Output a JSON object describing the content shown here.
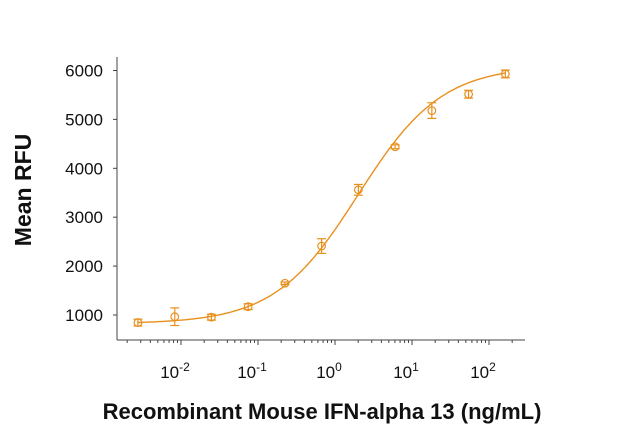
{
  "chart_data": {
    "type": "scatter",
    "title": "",
    "xlabel": "Recombinant Mouse IFN-alpha 13 (ng/mL)",
    "ylabel": "Mean RFU",
    "x_scale": "log",
    "xlim": [
      0.0015,
      400
    ],
    "ylim": [
      600,
      6300
    ],
    "x_ticks": [
      {
        "base": "10",
        "exp": "-2",
        "value": 0.01
      },
      {
        "base": "10",
        "exp": "-1",
        "value": 0.1
      },
      {
        "base": "10",
        "exp": "0",
        "value": 1
      },
      {
        "base": "10",
        "exp": "1",
        "value": 10
      },
      {
        "base": "10",
        "exp": "2",
        "value": 100
      }
    ],
    "y_ticks": [
      "1000",
      "2000",
      "3000",
      "4000",
      "5000",
      "6000"
    ],
    "grid": false,
    "color": "#E8901C",
    "series": [
      {
        "x": [
          0.00276,
          0.0083,
          0.0248,
          0.0745,
          0.224,
          0.67,
          2.01,
          6.04,
          18.1,
          54.3,
          163
        ],
        "y": [
          845,
          965,
          955,
          1170,
          1650,
          2410,
          3560,
          4440,
          5180,
          5515,
          5930
        ],
        "error": [
          70,
          180,
          60,
          60,
          25,
          150,
          110,
          40,
          160,
          80,
          80
        ],
        "fit": "4PL curve"
      }
    ]
  }
}
